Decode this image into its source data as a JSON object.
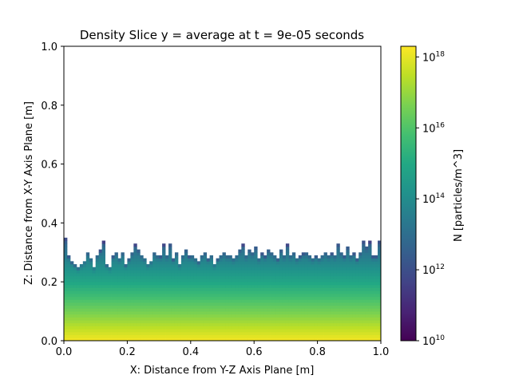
{
  "chart_data": {
    "type": "heatmap",
    "title": "Density Slice y = average at t = 9e-05 seconds",
    "xlabel": "X: Distance from Y-Z Axis Plane [m]",
    "ylabel": "Z: Distance from X-Y Axis Plane [m]",
    "xlim": [
      0.0,
      1.0
    ],
    "ylim": [
      0.0,
      1.0
    ],
    "x_ticks": [
      "0.0",
      "0.2",
      "0.4",
      "0.6",
      "0.8",
      "1.0"
    ],
    "y_ticks": [
      "0.0",
      "0.2",
      "0.4",
      "0.6",
      "0.8",
      "1.0"
    ],
    "grid": false,
    "colormap": "viridis",
    "colorbar": {
      "label": "N [particles/m^3]",
      "scale": "log",
      "vmin_exponent": 10,
      "vmax_exponent": 18.3,
      "ticks": [
        {
          "base": "10",
          "exp": "10",
          "value_exponent": 10
        },
        {
          "base": "10",
          "exp": "12",
          "value_exponent": 12
        },
        {
          "base": "10",
          "exp": "14",
          "value_exponent": 14
        },
        {
          "base": "10",
          "exp": "16",
          "value_exponent": 16
        },
        {
          "base": "10",
          "exp": "18",
          "value_exponent": 18
        }
      ]
    },
    "field": {
      "nx": 100,
      "nz": 100,
      "description": "log10 density falls from ~18.2 at z=0 to ~13.9 near z=0.26; cells above boundary are empty (white)",
      "surface_log10": 18.2,
      "gradient_per_m": 16.5,
      "boundary_z": [
        0.355,
        0.294,
        0.273,
        0.264,
        0.255,
        0.265,
        0.273,
        0.303,
        0.282,
        0.254,
        0.294,
        0.314,
        0.344,
        0.267,
        0.257,
        0.294,
        0.303,
        0.284,
        0.303,
        0.265,
        0.284,
        0.303,
        0.334,
        0.314,
        0.294,
        0.284,
        0.267,
        0.276,
        0.303,
        0.294,
        0.294,
        0.334,
        0.294,
        0.334,
        0.284,
        0.303,
        0.265,
        0.294,
        0.314,
        0.294,
        0.294,
        0.284,
        0.276,
        0.294,
        0.303,
        0.284,
        0.294,
        0.265,
        0.284,
        0.294,
        0.303,
        0.294,
        0.294,
        0.284,
        0.294,
        0.314,
        0.334,
        0.294,
        0.314,
        0.303,
        0.324,
        0.284,
        0.303,
        0.294,
        0.314,
        0.303,
        0.294,
        0.284,
        0.314,
        0.294,
        0.334,
        0.294,
        0.303,
        0.284,
        0.294,
        0.303,
        0.303,
        0.294,
        0.284,
        0.294,
        0.284,
        0.294,
        0.303,
        0.294,
        0.303,
        0.294,
        0.334,
        0.303,
        0.294,
        0.324,
        0.294,
        0.303,
        0.284,
        0.303,
        0.344,
        0.324,
        0.344,
        0.294,
        0.294,
        0.344
      ],
      "dark_edge_cols": [
        1,
        2,
        3,
        4,
        11,
        12,
        13,
        15,
        19,
        20,
        22,
        30,
        31,
        34,
        39,
        42,
        45,
        48,
        56,
        62,
        63,
        67,
        70,
        74,
        75,
        79,
        84,
        88,
        91,
        92,
        96,
        97,
        98
      ]
    }
  }
}
